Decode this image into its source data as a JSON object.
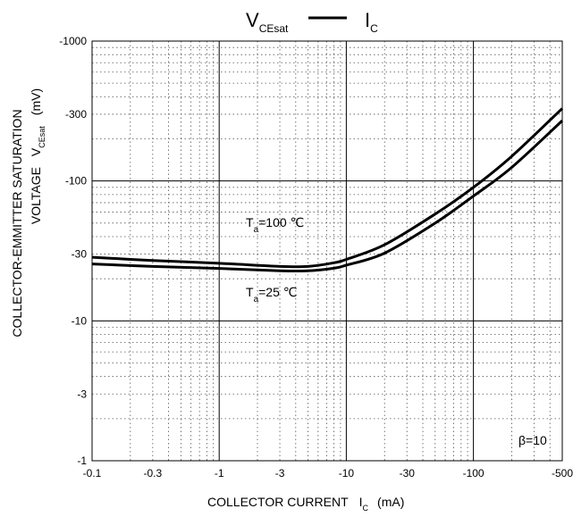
{
  "chart_data": {
    "type": "line",
    "title": {
      "left_main": "V",
      "left_sub": "CEsat",
      "right_main": "I",
      "right_sub": "C"
    },
    "xlabel": {
      "text": "COLLECTOR CURRENT",
      "symbol_main": "I",
      "symbol_sub": "C",
      "unit": "(mA)"
    },
    "ylabel": {
      "line1": "COLLECTOR-EMMITTER SATURATION",
      "line2_text": "VOLTAGE",
      "symbol_main": "V",
      "symbol_sub": "CEsat",
      "unit": "(mV)"
    },
    "x_scale": "log",
    "y_scale": "log",
    "xlim": [
      0.1,
      500
    ],
    "ylim": [
      1,
      1000
    ],
    "x_ticks": [
      {
        "value": 0.1,
        "label": "-0.1"
      },
      {
        "value": 0.3,
        "label": "-0.3"
      },
      {
        "value": 1,
        "label": "-1"
      },
      {
        "value": 3,
        "label": "-3"
      },
      {
        "value": 10,
        "label": "-10"
      },
      {
        "value": 30,
        "label": "-30"
      },
      {
        "value": 100,
        "label": "-100"
      },
      {
        "value": 500,
        "label": "-500"
      }
    ],
    "y_ticks": [
      {
        "value": 1,
        "label": "-1"
      },
      {
        "value": 3,
        "label": "-3"
      },
      {
        "value": 10,
        "label": "-10"
      },
      {
        "value": 30,
        "label": "-30"
      },
      {
        "value": 100,
        "label": "-100"
      },
      {
        "value": 300,
        "label": "-300"
      },
      {
        "value": 1000,
        "label": "-1000"
      }
    ],
    "grid": true,
    "series": [
      {
        "label_main": "T",
        "label_sub": "a",
        "label_rest": "=100 ℃",
        "x": [
          0.1,
          0.3,
          1,
          3,
          5,
          8,
          10,
          20,
          50,
          100,
          200,
          500
        ],
        "y": [
          28.5,
          27,
          25.8,
          24.5,
          24.5,
          26,
          27.5,
          35,
          58,
          90,
          150,
          330
        ]
      },
      {
        "label_main": "T",
        "label_sub": "a",
        "label_rest": "=25 ℃",
        "x": [
          0.1,
          0.3,
          1,
          3,
          5,
          8,
          10,
          20,
          50,
          100,
          200,
          500
        ],
        "y": [
          25.5,
          24.5,
          23.7,
          22.8,
          22.8,
          23.8,
          25,
          30.5,
          50,
          78,
          125,
          270
        ]
      }
    ],
    "annotation": "β=10"
  }
}
